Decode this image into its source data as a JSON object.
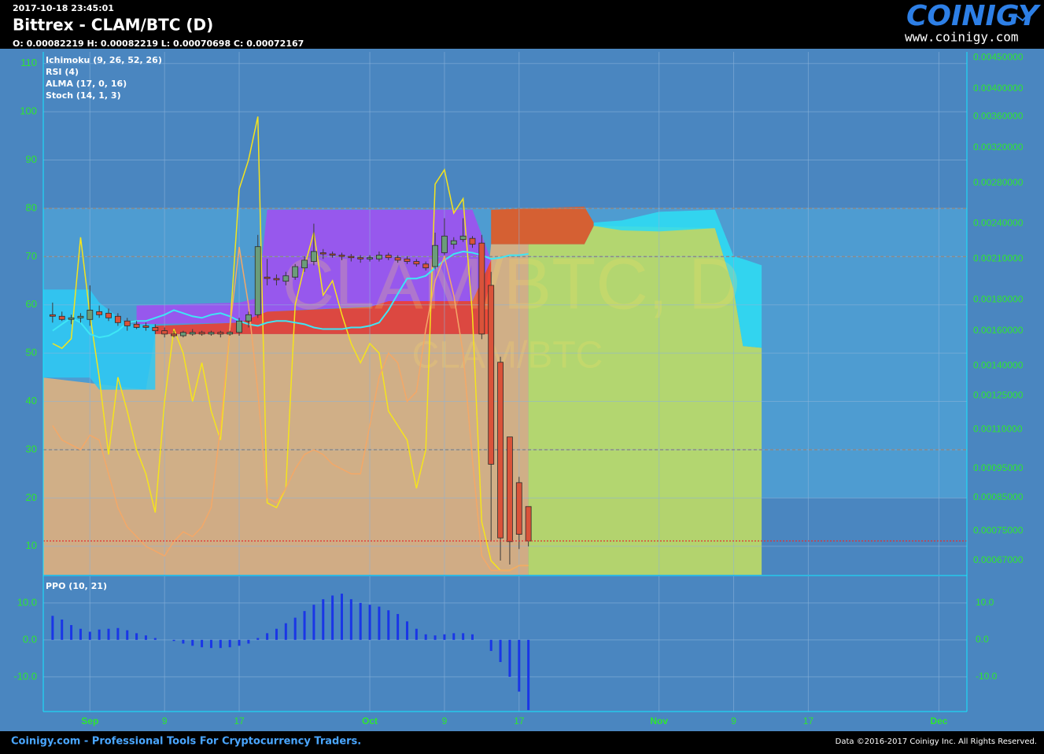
{
  "header": {
    "timestamp": "2017-10-18 23:45:01",
    "title": "Bittrex - CLAM/BTC (D)",
    "ohlc": "O: 0.00082219 H: 0.00082219 L: 0.00070698 C: 0.00072167"
  },
  "logo": {
    "name": "COINIGY",
    "url": "www.coinigy.com"
  },
  "footer": {
    "left": "Coinigy.com - Professional Tools For Cryptocurrency Traders.",
    "right": "Data ©2016-2017 Coinigy Inc. All Rights Reserved."
  },
  "chart_data": [
    {
      "type": "candlestick",
      "watermark": [
        "CLAM/BTC, D",
        "CLAM/BTC"
      ],
      "x": [
        "2017-08-28",
        "2017-08-29",
        "2017-08-30",
        "2017-08-31",
        "2017-09-01",
        "2017-09-02",
        "2017-09-03",
        "2017-09-04",
        "2017-09-05",
        "2017-09-06",
        "2017-09-07",
        "2017-09-08",
        "2017-09-09",
        "2017-09-10",
        "2017-09-11",
        "2017-09-12",
        "2017-09-13",
        "2017-09-14",
        "2017-09-15",
        "2017-09-16",
        "2017-09-17",
        "2017-09-18",
        "2017-09-19",
        "2017-09-20",
        "2017-09-21",
        "2017-09-22",
        "2017-09-23",
        "2017-09-24",
        "2017-09-25",
        "2017-09-26",
        "2017-09-27",
        "2017-09-28",
        "2017-09-29",
        "2017-09-30",
        "2017-10-01",
        "2017-10-02",
        "2017-10-03",
        "2017-10-04",
        "2017-10-05",
        "2017-10-06",
        "2017-10-07",
        "2017-10-08",
        "2017-10-09",
        "2017-10-10",
        "2017-10-11",
        "2017-10-12",
        "2017-10-13",
        "2017-10-14",
        "2017-10-15",
        "2017-10-16",
        "2017-10-17",
        "2017-10-18"
      ],
      "open": [
        0.0017,
        0.00169,
        0.00167,
        0.00168,
        0.00167,
        0.00172,
        0.00171,
        0.00169,
        0.00166,
        0.00164,
        0.00163,
        0.00162,
        0.0016,
        0.00158,
        0.00157,
        0.00158,
        0.00159,
        0.00158,
        0.00159,
        0.00158,
        0.00159,
        0.00166,
        0.0017,
        0.00196,
        0.00195,
        0.00193,
        0.00196,
        0.00203,
        0.00208,
        0.00215,
        0.00214,
        0.00213,
        0.00212,
        0.00211,
        0.0021,
        0.0021,
        0.00213,
        0.00211,
        0.0021,
        0.00208,
        0.00206,
        0.00204,
        0.00215,
        0.00222,
        0.00226,
        0.00227,
        0.00223,
        0.0019,
        0.00142,
        0.00107,
        0.0009,
        0.00082219
      ],
      "high": [
        0.00178,
        0.00172,
        0.0017,
        0.00171,
        0.0019,
        0.00176,
        0.00174,
        0.00171,
        0.00168,
        0.00166,
        0.00165,
        0.00164,
        0.00162,
        0.0016,
        0.0016,
        0.00161,
        0.0016,
        0.0016,
        0.0016,
        0.0016,
        0.00168,
        0.00172,
        0.0023,
        0.0021,
        0.00198,
        0.002,
        0.00206,
        0.00212,
        0.0024,
        0.00218,
        0.00216,
        0.00215,
        0.00214,
        0.00213,
        0.00213,
        0.00216,
        0.00215,
        0.00213,
        0.00212,
        0.0021,
        0.00208,
        0.00232,
        0.00245,
        0.00228,
        0.00245,
        0.00229,
        0.0023,
        0.002,
        0.00145,
        0.00107,
        0.00092,
        0.00082219
      ],
      "low": [
        0.00165,
        0.00166,
        0.00164,
        0.00165,
        0.00163,
        0.00168,
        0.00166,
        0.00163,
        0.0016,
        0.00161,
        0.0016,
        0.00158,
        0.00156,
        0.00156,
        0.00156,
        0.00157,
        0.00157,
        0.00157,
        0.00156,
        0.00157,
        0.00157,
        0.00162,
        0.00168,
        0.0019,
        0.0019,
        0.0019,
        0.00194,
        0.002,
        0.00205,
        0.0021,
        0.00211,
        0.00209,
        0.00208,
        0.00207,
        0.00208,
        0.00208,
        0.00209,
        0.00207,
        0.00206,
        0.00204,
        0.00201,
        0.00202,
        0.00213,
        0.00218,
        0.00224,
        0.00219,
        0.00155,
        0.00072,
        0.00067,
        0.00066,
        0.0007,
        0.00070698
      ],
      "close": [
        0.00169,
        0.00167,
        0.00168,
        0.00169,
        0.00173,
        0.0017,
        0.00168,
        0.00165,
        0.00163,
        0.00162,
        0.00162,
        0.0016,
        0.00158,
        0.00157,
        0.00159,
        0.00159,
        0.00158,
        0.00159,
        0.00158,
        0.00159,
        0.00166,
        0.0017,
        0.0022,
        0.00195,
        0.00194,
        0.00197,
        0.00204,
        0.00209,
        0.00216,
        0.00214,
        0.00213,
        0.00212,
        0.00211,
        0.0021,
        0.00211,
        0.00213,
        0.00211,
        0.00209,
        0.00208,
        0.00206,
        0.00203,
        0.00221,
        0.00229,
        0.00225,
        0.00229,
        0.00222,
        0.00158,
        0.000965,
        0.00073,
        0.00072,
        0.00074,
        0.00072167
      ],
      "up_color": "#6b9c7a",
      "down_color": "#d9533a",
      "axis": "y2",
      "xlim": [
        "2017-08-27",
        "2017-12-04"
      ],
      "xticks": [
        {
          "value": "2017-09-01",
          "label": "Sep"
        },
        {
          "value": "2017-09-09",
          "label": "9"
        },
        {
          "value": "2017-09-17",
          "label": "17"
        },
        {
          "value": "2017-10-01",
          "label": "Oct"
        },
        {
          "value": "2017-10-09",
          "label": "9"
        },
        {
          "value": "2017-10-17",
          "label": "17"
        },
        {
          "value": "2017-11-01",
          "label": "Nov"
        },
        {
          "value": "2017-11-09",
          "label": "9"
        },
        {
          "value": "2017-11-17",
          "label": "17"
        },
        {
          "value": "2017-12-01",
          "label": "Dec"
        }
      ],
      "ylim": [
        4.1,
        112.4
      ],
      "yticks": [
        10,
        20,
        30,
        40,
        50,
        60,
        70,
        80,
        90,
        100,
        110
      ],
      "y2lim": [
        0.000635,
        0.0046
      ],
      "y2log": true,
      "y2ticks": [
        {
          "value": 0.0045,
          "label": "0.00450000"
        },
        {
          "value": 0.004,
          "label": "0.00400000"
        },
        {
          "value": 0.0036,
          "label": "0.00360000"
        },
        {
          "value": 0.0032,
          "label": "0.00320000"
        },
        {
          "value": 0.0028,
          "label": "0.00280000"
        },
        {
          "value": 0.0024,
          "label": "0.00240000"
        },
        {
          "value": 0.0021,
          "label": "0.00210000"
        },
        {
          "value": 0.0018,
          "label": "0.00180000"
        },
        {
          "value": 0.0016,
          "label": "0.00160000"
        },
        {
          "value": 0.0014,
          "label": "0.00140000"
        },
        {
          "value": 0.00125,
          "label": "0.00125000"
        },
        {
          "value": 0.0011,
          "label": "0.00110000"
        },
        {
          "value": 0.00095,
          "label": "0.00095000"
        },
        {
          "value": 0.00085,
          "label": "0.00085000"
        },
        {
          "value": 0.00075,
          "label": "0.00075000"
        },
        {
          "value": 0.00067,
          "label": "0.00067000"
        }
      ],
      "grid": true,
      "levels": [
        80,
        70,
        30
      ],
      "band": [
        20,
        80
      ],
      "price_line": true,
      "ichimoku": {
        "name": "Ichimoku (9, 26, 52, 26)",
        "bands": [
          {
            "color": "#e3b27c",
            "x": [
              "2017-08-27",
              "2017-09-07",
              "2017-09-08",
              "2017-10-13",
              "2017-10-14",
              "2017-10-18"
            ],
            "upper": [
              0.00134,
              0.00128,
              0.00158,
              0.00158,
              0.00222,
              0.00222
            ]
          },
          {
            "color": "#c2de62",
            "x": [
              "2017-10-18",
              "2017-10-24",
              "2017-10-25",
              "2017-11-07",
              "2017-11-09",
              "2017-11-10",
              "2017-11-12"
            ],
            "upper": [
              0.00222,
              0.00222,
              0.00238,
              0.00236,
              0.00187,
              0.00151,
              0.0015
            ]
          },
          {
            "color": "#2fc8f2",
            "x": [
              "2017-08-27",
              "2017-09-01",
              "2017-09-02",
              "2017-09-05",
              "2017-09-08"
            ],
            "upper": [
              0.00187,
              0.00187,
              0.00178,
              0.00164,
              0.00164
            ],
            "lower": [
              0.00134,
              0.00134,
              0.00128,
              0.00128,
              0.00128
            ]
          },
          {
            "color": "#a24ff0",
            "x": [
              "2017-09-06",
              "2017-09-17",
              "2017-09-19",
              "2017-09-20",
              "2017-10-12",
              "2017-10-14"
            ],
            "upper": [
              0.00176,
              0.00178,
              0.00181,
              0.00253,
              0.00253,
              0.00209
            ],
            "lower": [
              0.00164,
              0.00165,
              0.00166,
              0.00172,
              0.00179,
              0.00209
            ]
          },
          {
            "color": "#f03c2c",
            "x": [
              "2017-09-08",
              "2017-09-17",
              "2017-09-20",
              "2017-10-01",
              "2017-10-03",
              "2017-10-12",
              "2017-10-14"
            ],
            "upper": [
              0.00163,
              0.00165,
              0.00172,
              0.00175,
              0.00179,
              0.00179,
              0.00209
            ],
            "lower": [
              0.00158,
              0.00158,
              0.00158,
              0.00158,
              0.00158,
              0.00158,
              0.00158
            ]
          },
          {
            "color": "#e8581c",
            "x": [
              "2017-10-14",
              "2017-10-24",
              "2017-10-25"
            ],
            "upper": [
              0.00253,
              0.00256,
              0.00241
            ],
            "lower": [
              0.00222,
              0.00222,
              0.00238
            ]
          },
          {
            "color": "#2fdcf2",
            "x": [
              "2017-10-25",
              "2017-10-28",
              "2017-11-01",
              "2017-11-07",
              "2017-11-09",
              "2017-11-10",
              "2017-11-12"
            ],
            "upper": [
              0.00241,
              0.00243,
              0.00251,
              0.00253,
              0.00212,
              0.0021,
              0.00205
            ],
            "lower": [
              0.00238,
              0.00234,
              0.00233,
              0.00236,
              0.00187,
              0.00151,
              0.0015
            ]
          }
        ]
      },
      "series": [
        {
          "name": "RSI (4)",
          "color": "#f5e41c",
          "axis": "y",
          "values": [
            52,
            51,
            53,
            74,
            58,
            45,
            29,
            45,
            38,
            30,
            25,
            17,
            40,
            55,
            50,
            40,
            48,
            38,
            32,
            55,
            84,
            90,
            99,
            19,
            18,
            22,
            60,
            68,
            75,
            62,
            65,
            58,
            52,
            48,
            52,
            50,
            38,
            35,
            32,
            22,
            30,
            85,
            88,
            79,
            82,
            58,
            15,
            7,
            5,
            5,
            6,
            6
          ]
        },
        {
          "name": "ALMA (17, 0, 16)",
          "color": "#3ee6f5",
          "axis": "y2",
          "values": [
            0.0016,
            0.00164,
            0.00168,
            0.00165,
            0.00158,
            0.00156,
            0.00157,
            0.0016,
            0.00165,
            0.00166,
            0.00166,
            0.00168,
            0.0017,
            0.00173,
            0.00171,
            0.00169,
            0.00168,
            0.0017,
            0.00171,
            0.00169,
            0.00166,
            0.00164,
            0.00163,
            0.00165,
            0.00166,
            0.00166,
            0.00165,
            0.00164,
            0.00162,
            0.00161,
            0.00161,
            0.00161,
            0.00162,
            0.00162,
            0.00163,
            0.00165,
            0.00173,
            0.00184,
            0.00195,
            0.00195,
            0.00197,
            0.00203,
            0.00209,
            0.00214,
            0.00216,
            0.00215,
            0.00213,
            0.0021,
            0.00211,
            0.00213,
            0.00213,
            0.00214
          ]
        },
        {
          "name": "Stoch (14, 1, 3)",
          "color": "#f3a868",
          "axis": "y",
          "values": [
            35,
            32,
            31,
            30,
            33,
            32,
            25,
            18,
            14,
            12,
            10,
            9,
            8,
            11,
            13,
            12,
            14,
            18,
            35,
            55,
            72,
            60,
            42,
            20,
            19,
            22,
            26,
            29,
            30,
            29,
            27,
            26,
            25,
            25,
            35,
            45,
            50,
            48,
            40,
            42,
            55,
            65,
            70,
            62,
            50,
            28,
            8,
            5,
            5,
            5,
            6,
            6
          ]
        }
      ]
    },
    {
      "type": "bar",
      "title": "PPO (10, 21)",
      "color": "#1a36e6",
      "x": [
        "2017-08-28",
        "2017-08-29",
        "2017-08-30",
        "2017-08-31",
        "2017-09-01",
        "2017-09-02",
        "2017-09-03",
        "2017-09-04",
        "2017-09-05",
        "2017-09-06",
        "2017-09-07",
        "2017-09-08",
        "2017-09-09",
        "2017-09-10",
        "2017-09-11",
        "2017-09-12",
        "2017-09-13",
        "2017-09-14",
        "2017-09-15",
        "2017-09-16",
        "2017-09-17",
        "2017-09-18",
        "2017-09-19",
        "2017-09-20",
        "2017-09-21",
        "2017-09-22",
        "2017-09-23",
        "2017-09-24",
        "2017-09-25",
        "2017-09-26",
        "2017-09-27",
        "2017-09-28",
        "2017-09-29",
        "2017-09-30",
        "2017-10-01",
        "2017-10-02",
        "2017-10-03",
        "2017-10-04",
        "2017-10-05",
        "2017-10-06",
        "2017-10-07",
        "2017-10-08",
        "2017-10-09",
        "2017-10-10",
        "2017-10-11",
        "2017-10-12",
        "2017-10-13",
        "2017-10-14",
        "2017-10-15",
        "2017-10-16",
        "2017-10-17",
        "2017-10-18"
      ],
      "values": [
        6.5,
        5.5,
        4,
        3,
        2.2,
        2.8,
        3,
        3.2,
        2.6,
        1.8,
        1.2,
        0.5,
        0,
        -0.3,
        -1,
        -1.6,
        -2,
        -2.2,
        -2.2,
        -2,
        -1.6,
        -1,
        0.5,
        1.8,
        3,
        4.5,
        6,
        7.8,
        9.5,
        11,
        12,
        12.5,
        11,
        10,
        9.5,
        9,
        8,
        7,
        5,
        3,
        1.5,
        1.2,
        1.5,
        1.8,
        1.8,
        1.5,
        0,
        -3,
        -6,
        -10,
        -14,
        -19
      ],
      "xlim": [
        "2017-08-27",
        "2017-12-04"
      ],
      "ylim": [
        -19.4,
        17.2
      ],
      "yticks": [
        {
          "value": 10,
          "label": "10.0"
        },
        {
          "value": 0,
          "label": "0.0"
        },
        {
          "value": -10,
          "label": "-10.0"
        }
      ],
      "grid": true
    }
  ]
}
